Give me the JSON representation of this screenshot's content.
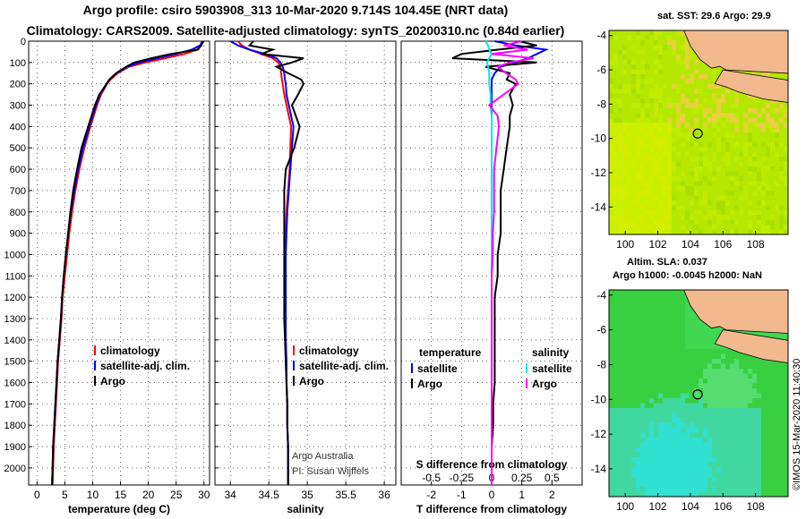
{
  "header": {
    "title_line1": "Argo profile: csiro 5903908_313 10-Mar-2020 9.714S 104.45E (NRT data)",
    "title_line2": "Climatology: CARS2009. Satellite-adjusted climatology: synTS_20200310.nc (0.84d earlier)"
  },
  "colors": {
    "climatology": "#ff0000",
    "satellite": "#0000ff",
    "argo": "#000000",
    "satellite_salinity": "#00e5ee",
    "argo_salinity_diff": "#ff00ff",
    "land": "#f2b98e"
  },
  "chart_data": [
    {
      "type": "line",
      "panel": "temperature",
      "xlabel": "temperature (deg C)",
      "ylabel": "",
      "xlim": [
        -1.5,
        31
      ],
      "ylim": [
        2080,
        0
      ],
      "xticks": [
        0,
        5,
        10,
        15,
        20,
        25,
        30
      ],
      "yticks": [
        0,
        100,
        200,
        300,
        400,
        500,
        600,
        700,
        800,
        900,
        1000,
        1100,
        1200,
        1300,
        1400,
        1500,
        1600,
        1700,
        1800,
        1900,
        2000
      ],
      "grid": true,
      "legend_position": "lower-center",
      "depth": [
        0,
        20,
        40,
        60,
        80,
        100,
        120,
        150,
        180,
        200,
        250,
        300,
        350,
        400,
        500,
        600,
        700,
        800,
        900,
        1000,
        1100,
        1200,
        1300,
        1400,
        1500,
        1600,
        1700,
        1800,
        1900,
        2000,
        2080
      ],
      "series": [
        {
          "name": "climatology",
          "values": [
            29.6,
            29.4,
            28.8,
            26.5,
            23.0,
            19.5,
            16.5,
            14.5,
            13.2,
            12.6,
            11.5,
            10.8,
            10.2,
            9.6,
            8.5,
            7.6,
            6.9,
            6.3,
            5.8,
            5.4,
            5.0,
            4.6,
            4.4,
            4.1,
            3.8,
            3.6,
            3.4,
            3.2,
            3.0,
            2.9,
            2.8
          ]
        },
        {
          "name": "satellite-adj. clim.",
          "values": [
            29.8,
            29.3,
            27.8,
            25.0,
            21.5,
            18.5,
            16.2,
            14.3,
            13.0,
            12.5,
            11.3,
            10.6,
            10.0,
            9.4,
            8.3,
            7.4,
            6.7,
            6.1,
            5.6,
            5.2,
            4.8,
            4.5,
            4.3,
            4.0,
            3.7,
            3.5,
            3.3,
            3.1,
            2.9,
            2.8,
            2.7
          ]
        },
        {
          "name": "Argo",
          "values": [
            29.9,
            29.5,
            28.9,
            24.0,
            20.5,
            17.5,
            16.0,
            14.2,
            13.0,
            12.5,
            11.2,
            10.4,
            9.8,
            9.2,
            8.0,
            7.2,
            6.5,
            6.0,
            5.6,
            5.2,
            4.8,
            4.5,
            4.3,
            4.0,
            3.7,
            3.5,
            3.3,
            3.1,
            2.9,
            2.8,
            2.7
          ]
        }
      ]
    },
    {
      "type": "line",
      "panel": "salinity",
      "xlabel": "salinity",
      "ylabel": "",
      "xlim": [
        33.8,
        36.15
      ],
      "ylim": [
        2080,
        0
      ],
      "xticks": [
        34,
        34.5,
        35,
        35.5,
        36
      ],
      "grid": true,
      "legend_position": "lower-right",
      "depth": [
        0,
        20,
        40,
        60,
        80,
        100,
        120,
        150,
        180,
        200,
        250,
        300,
        350,
        400,
        500,
        600,
        700,
        800,
        900,
        1000,
        1100,
        1200,
        1300,
        1400,
        1500,
        1600,
        1700,
        1800,
        1900,
        2000,
        2080
      ],
      "series": [
        {
          "name": "climatology",
          "values": [
            34.1,
            34.15,
            34.25,
            34.4,
            34.55,
            34.62,
            34.65,
            34.66,
            34.67,
            34.68,
            34.7,
            34.73,
            34.76,
            34.79,
            34.78,
            34.77,
            34.75,
            34.73,
            34.72,
            34.71,
            34.71,
            34.71,
            34.71,
            34.72,
            34.72,
            34.73,
            34.74,
            34.74,
            34.75,
            34.75,
            34.75
          ]
        },
        {
          "name": "satellite-adj. clim.",
          "values": [
            34.0,
            34.1,
            34.25,
            34.45,
            34.6,
            34.65,
            34.68,
            34.7,
            34.71,
            34.72,
            34.73,
            34.76,
            34.79,
            34.82,
            34.8,
            34.78,
            34.76,
            34.74,
            34.73,
            34.72,
            34.72,
            34.72,
            34.72,
            34.72,
            34.73,
            34.73,
            34.74,
            34.74,
            34.75,
            34.75,
            34.75
          ]
        },
        {
          "name": "Argo",
          "values": [
            34.3,
            34.25,
            34.55,
            34.4,
            34.95,
            34.8,
            34.6,
            34.75,
            34.92,
            34.95,
            34.88,
            34.8,
            34.85,
            34.9,
            34.83,
            34.72,
            34.7,
            34.7,
            34.7,
            34.7,
            34.7,
            34.7,
            34.7,
            34.71,
            34.72,
            34.73,
            34.74,
            34.74,
            34.75,
            34.75,
            34.75
          ]
        }
      ],
      "annotations": [
        "Argo Australia",
        "PI: Susan Wijffels"
      ]
    },
    {
      "type": "line",
      "panel": "differences",
      "xlabel": "T difference from climatology",
      "secondary_xlabel": "S difference from climatology",
      "xlim": [
        -3,
        3
      ],
      "xticks": [
        -2,
        -1,
        0,
        1,
        2
      ],
      "secondary_xticks": [
        "-0.5",
        "-0.25",
        "0",
        "0.25",
        "0.5"
      ],
      "secondary_xlim": [
        -0.75,
        0.75
      ],
      "ylim": [
        2080,
        0
      ],
      "grid": true,
      "legend_position": "lower-center",
      "legend_headers": [
        "temperature",
        "salinity"
      ],
      "depth": [
        0,
        20,
        40,
        60,
        80,
        100,
        120,
        150,
        180,
        200,
        250,
        300,
        350,
        400,
        500,
        600,
        700,
        800,
        900,
        1000,
        1100,
        1200,
        1300,
        1400,
        1500,
        1600,
        1700,
        1800,
        1900,
        2000,
        2080
      ],
      "series": [
        {
          "name": "satellite",
          "variable": "temperature",
          "values": [
            0.1,
            0.8,
            1.8,
            1.5,
            1.2,
            0.8,
            0.3,
            0.1,
            0.0,
            0.0,
            0.0,
            0.0,
            0.0,
            0.0,
            0.0,
            0.0,
            0.0,
            0.0,
            0.0,
            0.0,
            0.0,
            0.0,
            0.0,
            0.0,
            0.0,
            0.0,
            0.0,
            0.0,
            0.0,
            0.0,
            0.0
          ]
        },
        {
          "name": "Argo",
          "variable": "temperature",
          "values": [
            0.9,
            1.5,
            0.2,
            -1.0,
            -1.3,
            1.5,
            -0.2,
            0.6,
            0.5,
            0.8,
            0.6,
            0.7,
            0.6,
            0.6,
            0.5,
            0.4,
            0.3,
            0.3,
            0.3,
            0.2,
            0.2,
            0.1,
            0.1,
            0.1,
            0.1,
            0.1,
            0.05,
            0.05,
            0.0,
            0.0,
            0.0
          ]
        },
        {
          "name": "satellite",
          "variable": "salinity",
          "values": [
            -0.05,
            -0.03,
            -0.02,
            0.0,
            -0.02,
            -0.04,
            -0.03,
            -0.02,
            -0.02,
            -0.02,
            -0.01,
            -0.01,
            0.0,
            0.0,
            0.0,
            0.0,
            0.0,
            0.0,
            0.0,
            0.0,
            0.0,
            0.0,
            0.0,
            0.0,
            0.0,
            0.0,
            0.0,
            0.0,
            0.0,
            0.0,
            0.0
          ]
        },
        {
          "name": "Argo",
          "variable": "salinity",
          "values": [
            0.25,
            0.1,
            0.3,
            0.0,
            0.35,
            0.15,
            0.05,
            0.12,
            0.2,
            0.22,
            0.1,
            -0.02,
            0.05,
            0.06,
            0.04,
            0.02,
            0.02,
            0.02,
            0.01,
            0.01,
            0.0,
            0.0,
            0.0,
            0.0,
            0.0,
            0.0,
            0.0,
            0.0,
            0.0,
            0.0,
            0.0
          ]
        }
      ]
    },
    {
      "type": "heatmap",
      "panel": "sst-map",
      "title": "sat. SST: 29.6 Argo: 29.9",
      "xlim": [
        99,
        110
      ],
      "ylim": [
        -15.6,
        -3.7
      ],
      "xticks": [
        100,
        102,
        104,
        106,
        108
      ],
      "yticks": [
        -4,
        -6,
        -8,
        -10,
        -12,
        -14
      ],
      "profile_lon": 104.45,
      "profile_lat": -9.714
    },
    {
      "type": "heatmap",
      "panel": "sla-map",
      "title_line1": "Altim. SLA: 0.037",
      "title_line2": "Argo h1000: -0.0045 h2000: NaN",
      "xlim": [
        99,
        110
      ],
      "ylim": [
        -15.6,
        -3.7
      ],
      "xticks": [
        100,
        102,
        104,
        106,
        108
      ],
      "yticks": [
        -4,
        -6,
        -8,
        -10,
        -12,
        -14
      ],
      "profile_lon": 104.45,
      "profile_lat": -9.714
    }
  ],
  "footer": {
    "credit": "©IMOS 15-Mar-2020 11:40:30"
  }
}
